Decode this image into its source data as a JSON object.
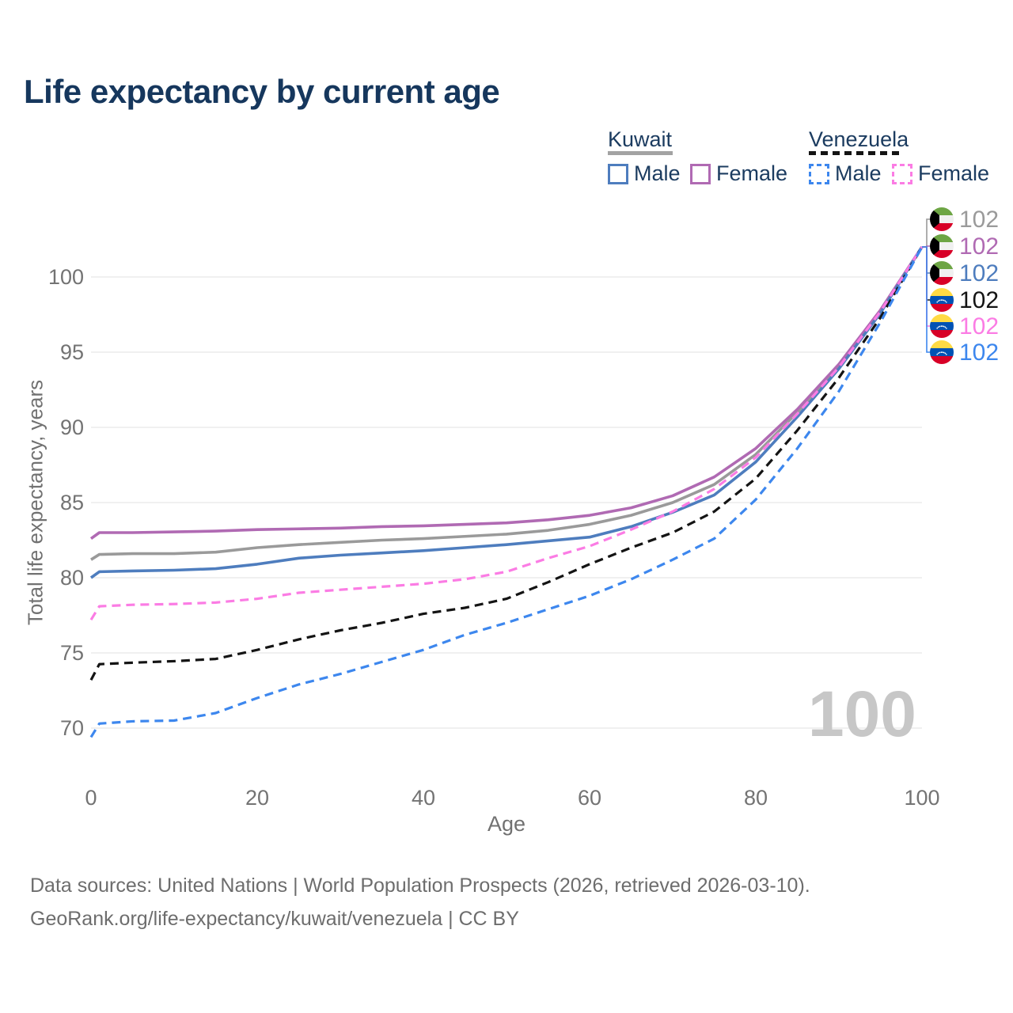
{
  "title": "Life expectancy by current age",
  "legend": {
    "groups": [
      {
        "name": "Kuwait",
        "line_style": "solid",
        "underline_color": "#a3a3a3",
        "items": [
          {
            "label": "Male",
            "color": "#4e7dbe"
          },
          {
            "label": "Female",
            "color": "#b06ab3"
          }
        ]
      },
      {
        "name": "Venezuela",
        "line_style": "dashed",
        "underline_color": "#141414",
        "items": [
          {
            "label": "Male",
            "color": "#3d87ee"
          },
          {
            "label": "Female",
            "color": "#fb7ce4"
          }
        ]
      }
    ]
  },
  "chart_data": {
    "type": "line",
    "title": "Life expectancy by current age",
    "xlabel": "Age",
    "ylabel": "Total life expectancy, years",
    "xlim": [
      0,
      100
    ],
    "ylim": [
      70,
      100
    ],
    "xticks": [
      0,
      20,
      40,
      60,
      80,
      100
    ],
    "yticks": [
      70,
      75,
      80,
      85,
      90,
      95,
      100
    ],
    "grid": "horizontal",
    "legend_position": "top-right",
    "watermark": "100",
    "ages": [
      0,
      1,
      5,
      10,
      15,
      20,
      25,
      30,
      35,
      40,
      45,
      50,
      55,
      60,
      65,
      70,
      75,
      80,
      85,
      90,
      95,
      100
    ],
    "series": [
      {
        "key": "kuwait-total",
        "name": "Kuwait",
        "country": "kuwait",
        "color": "#9a9a9a",
        "dashed": false,
        "values": [
          81.2,
          81.55,
          81.6,
          81.6,
          81.7,
          82.0,
          82.2,
          82.35,
          82.5,
          82.6,
          82.75,
          82.9,
          83.15,
          83.55,
          84.15,
          85.0,
          86.2,
          88.2,
          91.0,
          94.1,
          97.7,
          102
        ]
      },
      {
        "key": "kuwait-female",
        "name": "Kuwait Female",
        "country": "kuwait",
        "color": "#b06ab3",
        "dashed": false,
        "values": [
          82.6,
          83.0,
          83.0,
          83.05,
          83.1,
          83.2,
          83.25,
          83.3,
          83.4,
          83.45,
          83.55,
          83.65,
          83.85,
          84.15,
          84.65,
          85.45,
          86.7,
          88.6,
          91.2,
          94.2,
          97.8,
          102
        ]
      },
      {
        "key": "kuwait-male",
        "name": "Kuwait Male",
        "country": "kuwait",
        "color": "#4e7dbe",
        "dashed": false,
        "values": [
          80.0,
          80.4,
          80.45,
          80.5,
          80.6,
          80.9,
          81.3,
          81.5,
          81.65,
          81.8,
          82.0,
          82.2,
          82.45,
          82.7,
          83.4,
          84.35,
          85.5,
          87.7,
          90.7,
          93.9,
          97.6,
          102
        ]
      },
      {
        "key": "venezuela-total",
        "name": "Venezuela",
        "country": "venezuela",
        "color": "#141414",
        "dashed": true,
        "values": [
          73.2,
          74.25,
          74.35,
          74.45,
          74.6,
          75.2,
          75.9,
          76.5,
          77.0,
          77.6,
          78.0,
          78.6,
          79.7,
          80.9,
          82.0,
          83.0,
          84.4,
          86.6,
          89.8,
          93.3,
          97.3,
          102
        ]
      },
      {
        "key": "venezuela-female",
        "name": "Venezuela Female",
        "country": "venezuela",
        "color": "#fb7ce4",
        "dashed": true,
        "values": [
          77.2,
          78.1,
          78.2,
          78.25,
          78.35,
          78.6,
          79.0,
          79.2,
          79.4,
          79.6,
          79.9,
          80.4,
          81.3,
          82.1,
          83.2,
          84.4,
          85.9,
          88.0,
          90.9,
          94.0,
          97.7,
          102
        ]
      },
      {
        "key": "venezuela-male",
        "name": "Venezuela Male",
        "country": "venezuela",
        "color": "#3d87ee",
        "dashed": true,
        "values": [
          69.4,
          70.3,
          70.45,
          70.5,
          71.0,
          72.0,
          72.9,
          73.6,
          74.4,
          75.2,
          76.2,
          77.0,
          77.9,
          78.8,
          79.9,
          81.2,
          82.6,
          85.2,
          88.6,
          92.4,
          97.0,
          102
        ]
      }
    ],
    "end_labels": [
      {
        "series": "kuwait-total",
        "flag": "kuwait",
        "value": "102",
        "color": "#9a9a9a"
      },
      {
        "series": "kuwait-female",
        "flag": "kuwait",
        "value": "102",
        "color": "#b06ab3"
      },
      {
        "series": "kuwait-male",
        "flag": "kuwait",
        "value": "102",
        "color": "#4e7dbe"
      },
      {
        "series": "venezuela-total",
        "flag": "venezuela",
        "value": "102",
        "color": "#141414"
      },
      {
        "series": "venezuela-female",
        "flag": "venezuela",
        "value": "102",
        "color": "#fb7ce4"
      },
      {
        "series": "venezuela-male",
        "flag": "venezuela",
        "value": "102",
        "color": "#3d87ee"
      }
    ],
    "flag_colors": {
      "kuwait": {
        "green": "#6DA544",
        "white": "#F0F0F0",
        "red": "#D80027",
        "black": "#000000"
      },
      "venezuela": {
        "yellow": "#FFDA44",
        "blue": "#0052B4",
        "red": "#D80027",
        "star": "#FFFFFF"
      }
    }
  },
  "footer": {
    "line1": "Data sources: United Nations | World Population Prospects (2026, retrieved 2026-03-10).",
    "line2": "GeoRank.org/life-expectancy/kuwait/venezuela | CC BY"
  }
}
